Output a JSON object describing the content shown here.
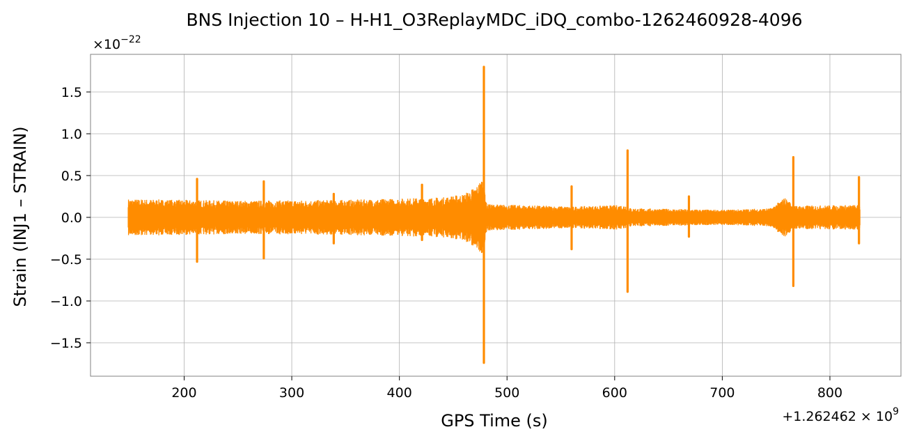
{
  "chart_data": {
    "type": "line",
    "title": "BNS Injection 10 – H-H1_O3ReplayMDC_iDQ_combo-1262460928-4096",
    "xlabel": "GPS Time (s)",
    "ylabel": "Strain (INJ1 – STRAIN)",
    "x_offset_label": "+1.262462 × 10",
    "x_offset_exponent": "9",
    "y_scale_label": "×10",
    "y_scale_exponent": "−22",
    "xlim": [
      113,
      866
    ],
    "ylim": [
      -1.9,
      1.95
    ],
    "x_ticks": [
      200,
      300,
      400,
      500,
      600,
      700,
      800
    ],
    "x_tick_labels": [
      "200",
      "300",
      "400",
      "500",
      "600",
      "700",
      "800"
    ],
    "y_ticks": [
      -1.5,
      -1.0,
      -0.5,
      0.0,
      0.5,
      1.0,
      1.5
    ],
    "y_tick_labels": [
      "−1.5",
      "−1.0",
      "−0.5",
      "0.0",
      "0.5",
      "1.0",
      "1.5"
    ],
    "grid": true,
    "series": [
      {
        "color": "#ff8c00",
        "x_range": [
          148,
          828
        ],
        "envelope": [
          {
            "x": 148,
            "half_width": 0.22
          },
          {
            "x": 250,
            "half_width": 0.2
          },
          {
            "x": 350,
            "half_width": 0.21
          },
          {
            "x": 440,
            "half_width": 0.24
          },
          {
            "x": 460,
            "half_width": 0.28
          },
          {
            "x": 472,
            "half_width": 0.38
          },
          {
            "x": 478,
            "half_width": 0.5
          },
          {
            "x": 481,
            "half_width": 0.16
          },
          {
            "x": 560,
            "half_width": 0.13
          },
          {
            "x": 611,
            "half_width": 0.15
          },
          {
            "x": 615,
            "half_width": 0.11
          },
          {
            "x": 700,
            "half_width": 0.09
          },
          {
            "x": 745,
            "half_width": 0.11
          },
          {
            "x": 758,
            "half_width": 0.24
          },
          {
            "x": 767,
            "half_width": 0.14
          },
          {
            "x": 828,
            "half_width": 0.15
          }
        ],
        "spikes": [
          {
            "x": 212,
            "max": 0.46,
            "min": -0.53
          },
          {
            "x": 274,
            "max": 0.43,
            "min": -0.49
          },
          {
            "x": 339,
            "max": 0.28,
            "min": -0.31
          },
          {
            "x": 421,
            "max": 0.39,
            "min": -0.27
          },
          {
            "x": 478.5,
            "max": 1.8,
            "min": -1.74
          },
          {
            "x": 560,
            "max": 0.37,
            "min": -0.38
          },
          {
            "x": 612,
            "max": 0.8,
            "min": -0.89
          },
          {
            "x": 669,
            "max": 0.25,
            "min": -0.23
          },
          {
            "x": 766,
            "max": 0.72,
            "min": -0.82
          },
          {
            "x": 827,
            "max": 0.48,
            "min": -0.31
          }
        ]
      }
    ]
  }
}
